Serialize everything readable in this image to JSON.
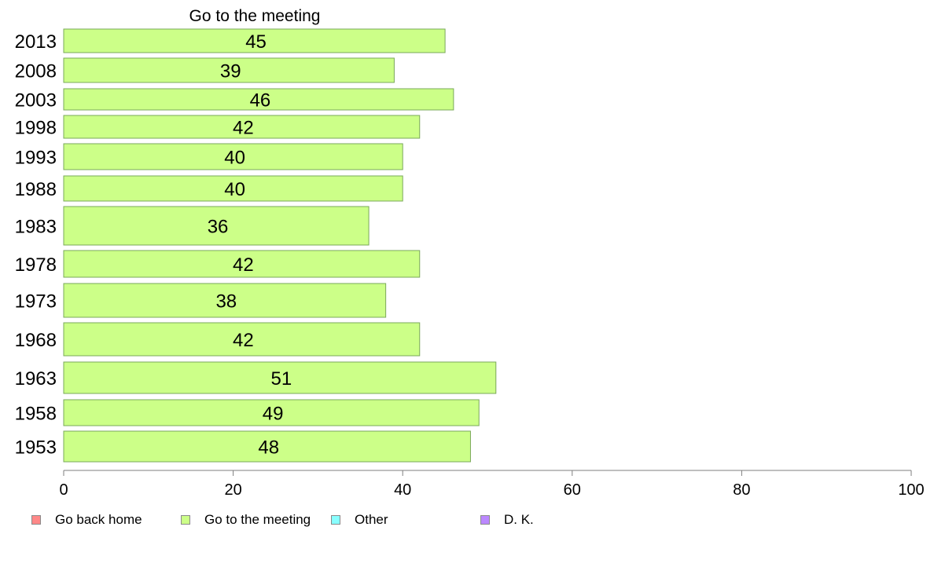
{
  "chart_data": {
    "type": "bar",
    "orientation": "horizontal",
    "title": "Go to the meeting",
    "categories": [
      "2013",
      "2008",
      "2003",
      "1998",
      "1993",
      "1988",
      "1983",
      "1978",
      "1973",
      "1968",
      "1963",
      "1958",
      "1953"
    ],
    "series": [
      {
        "name": "Go to the meeting",
        "color": "#ccff88",
        "values": [
          45,
          39,
          46,
          42,
          40,
          40,
          36,
          42,
          38,
          42,
          51,
          49,
          48
        ]
      }
    ],
    "xlim": [
      0,
      100
    ],
    "xticks": [
      0,
      20,
      40,
      60,
      80,
      100
    ],
    "grid": false,
    "legend_position": "bottom",
    "legend": [
      {
        "label": "Go back home",
        "color": "#ff8888"
      },
      {
        "label": "Go to the meeting",
        "color": "#ccff88"
      },
      {
        "label": "Other",
        "color": "#88ffff"
      },
      {
        "label": "D. K.",
        "color": "#bb88ff"
      }
    ]
  }
}
